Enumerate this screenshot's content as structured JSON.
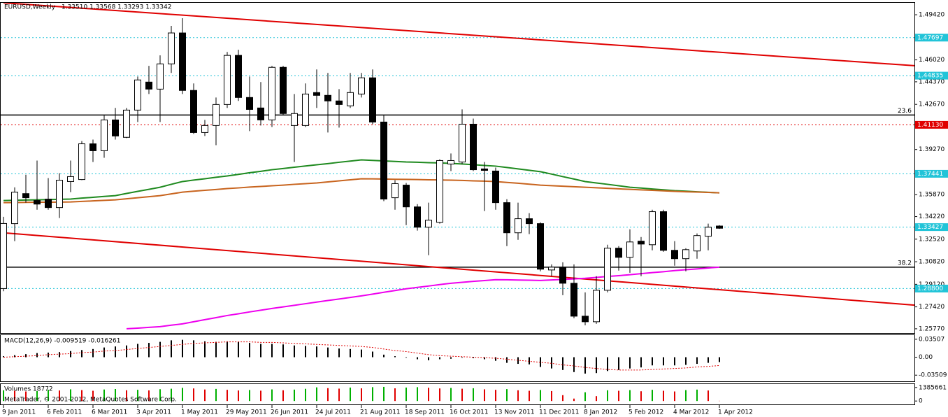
{
  "footer_text": "MetaTrader, © 2001-2012, MetaQuotes Software Corp.",
  "chart_data": [
    {
      "type": "candlestick",
      "title": "EURUSD,Weekly",
      "subtitle": "1.33510 1.33568 1.33293 1.33342",
      "categories": [
        "9 Jan 2011",
        null,
        null,
        null,
        "6 Feb 2011",
        null,
        null,
        null,
        "6 Mar 2011",
        null,
        null,
        null,
        "3 Apr 2011",
        null,
        null,
        null,
        "1 May 2011",
        null,
        null,
        null,
        "29 May 2011",
        null,
        null,
        null,
        "26 Jun 2011",
        null,
        null,
        null,
        "24 Jul 2011",
        null,
        null,
        null,
        "21 Aug 2011",
        null,
        null,
        null,
        "18 Sep 2011",
        null,
        null,
        null,
        "16 Oct 2011",
        null,
        null,
        null,
        "13 Nov 2011",
        null,
        null,
        null,
        "11 Dec 2011",
        null,
        null,
        null,
        "8 Jan 2012",
        null,
        null,
        null,
        "5 Feb 2012",
        null,
        null,
        null,
        "4 Mar 2012",
        null,
        null,
        null,
        "1 Apr 2012"
      ],
      "open": [
        1.288,
        1.3369,
        1.3595,
        1.3543,
        1.3553,
        1.349,
        1.3686,
        1.3701,
        1.397,
        1.3918,
        1.415,
        1.4019,
        1.4224,
        1.4435,
        1.4382,
        1.4572,
        1.4805,
        1.4372,
        1.4055,
        1.4108,
        1.4266,
        1.4636,
        1.4319,
        1.424,
        1.415,
        1.4546,
        1.4108,
        1.4108,
        1.4356,
        1.4335,
        1.4293,
        1.4256,
        1.4345,
        1.4467,
        1.4134,
        1.3564,
        1.3659,
        1.3495,
        1.3342,
        1.3379,
        1.3818,
        1.3833,
        1.4118,
        1.3781,
        1.3765,
        1.3527,
        1.33,
        1.3406,
        1.3369,
        1.302,
        1.3041,
        1.292,
        1.2672,
        1.263,
        1.2867,
        1.3184,
        1.3115,
        1.3237,
        1.321,
        1.3459,
        1.3168,
        1.3105,
        1.3163,
        1.3274,
        1.3351
      ],
      "high": [
        1.342,
        1.3642,
        1.3737,
        1.3844,
        1.3712,
        1.3749,
        1.3844,
        1.3991,
        1.4002,
        1.4187,
        1.424,
        1.424,
        1.4477,
        1.4557,
        1.4636,
        1.4858,
        1.4916,
        1.4425,
        1.415,
        1.4319,
        1.4662,
        1.4678,
        1.4477,
        1.4435,
        1.4557,
        1.4557,
        1.4345,
        1.4425,
        1.453,
        1.4504,
        1.4382,
        1.4504,
        1.4504,
        1.453,
        1.4187,
        1.3696,
        1.3675,
        1.3516,
        1.3527,
        1.3854,
        1.3897,
        1.4229,
        1.416,
        1.3833,
        1.3791,
        1.3553,
        1.3527,
        1.3448,
        1.3379,
        1.3062,
        1.3078,
        1.3062,
        1.2851,
        1.2973,
        1.321,
        1.32,
        1.3326,
        1.3268,
        1.3474,
        1.3474,
        1.3237,
        1.3184,
        1.3295,
        1.3369,
        1.33568
      ],
      "low": [
        1.286,
        1.3237,
        1.3527,
        1.3474,
        1.3474,
        1.3411,
        1.3606,
        1.3696,
        1.3833,
        1.3865,
        1.4002,
        1.4013,
        1.4134,
        1.4345,
        1.4134,
        1.4504,
        1.4345,
        1.4045,
        1.4029,
        1.396,
        1.424,
        1.4293,
        1.4066,
        1.4108,
        1.4097,
        1.4187,
        1.3833,
        1.4097,
        1.424,
        1.4055,
        1.4092,
        1.424,
        1.4319,
        1.4118,
        1.3538,
        1.3474,
        1.3358,
        1.3316,
        1.3131,
        1.3369,
        1.3765,
        1.3818,
        1.3765,
        1.3464,
        1.3474,
        1.32,
        1.3247,
        1.329,
        1.301,
        1.2973,
        1.283,
        1.2656,
        1.2603,
        1.2614,
        1.2851,
        1.3015,
        1.2999,
        1.2973,
        1.3168,
        1.3157,
        1.3052,
        1.301,
        1.3105,
        1.3168,
        1.33293
      ],
      "close": [
        1.337,
        1.3606,
        1.3564,
        1.3516,
        1.349,
        1.3696,
        1.3723,
        1.397,
        1.3918,
        1.415,
        1.4029,
        1.4224,
        1.4451,
        1.4382,
        1.4572,
        1.4805,
        1.4372,
        1.4055,
        1.4108,
        1.4266,
        1.4636,
        1.4319,
        1.4229,
        1.415,
        1.4546,
        1.4198,
        1.4198,
        1.4345,
        1.4335,
        1.4293,
        1.4266,
        1.4356,
        1.4467,
        1.4134,
        1.3554,
        1.367,
        1.3495,
        1.3342,
        1.3395,
        1.3844,
        1.3844,
        1.4118,
        1.3775,
        1.377,
        1.3527,
        1.33,
        1.3406,
        1.3369,
        1.3026,
        1.3041,
        1.292,
        1.2672,
        1.263,
        1.2867,
        1.3184,
        1.3115,
        1.3231,
        1.3215,
        1.3459,
        1.3168,
        1.3105,
        1.3173,
        1.3279,
        1.3342,
        1.33342
      ],
      "up_color": "#ffffff",
      "down_color": "#000000",
      "wick_color": "#000000",
      "series": [
        {
          "color": "#1f8a1f",
          "values": [
            1.3543,
            1.3545,
            1.3547,
            1.3548,
            1.355,
            1.3552,
            1.3554,
            1.3561,
            1.3567,
            1.3574,
            1.358,
            1.3596,
            1.3612,
            1.3627,
            1.3643,
            1.3665,
            1.3686,
            1.3697,
            1.3707,
            1.3718,
            1.3728,
            1.374,
            1.3752,
            1.3763,
            1.3775,
            1.3784,
            1.3794,
            1.3803,
            1.3812,
            1.3821,
            1.3831,
            1.384,
            1.3849,
            1.3845,
            1.3841,
            1.3837,
            1.3833,
            1.3831,
            1.3828,
            1.3826,
            1.3823,
            1.3818,
            1.3813,
            1.3807,
            1.3802,
            1.3792,
            1.3781,
            1.3771,
            1.376,
            1.3742,
            1.3723,
            1.3705,
            1.3686,
            1.3675,
            1.3665,
            1.3654,
            1.3643,
            1.3637,
            1.363,
            1.3624,
            1.3617,
            1.3613,
            1.3609,
            1.3605,
            1.3601
          ]
        },
        {
          "color": "#c8641e",
          "values": [
            1.3527,
            1.3528,
            1.3529,
            1.353,
            1.353,
            1.3531,
            1.3532,
            1.3536,
            1.354,
            1.3544,
            1.3548,
            1.3556,
            1.3564,
            1.3572,
            1.358,
            1.3593,
            1.3606,
            1.3613,
            1.362,
            1.3626,
            1.3633,
            1.3638,
            1.3644,
            1.3649,
            1.3654,
            1.3659,
            1.3665,
            1.367,
            1.3675,
            1.3683,
            1.3691,
            1.3699,
            1.3707,
            1.3706,
            1.3705,
            1.3703,
            1.3702,
            1.3701,
            1.3699,
            1.3698,
            1.3696,
            1.3694,
            1.3691,
            1.3689,
            1.3686,
            1.3679,
            1.3673,
            1.3666,
            1.3659,
            1.3655,
            1.3651,
            1.3647,
            1.3643,
            1.3639,
            1.3635,
            1.3631,
            1.3627,
            1.3623,
            1.362,
            1.3616,
            1.3612,
            1.3609,
            1.3607,
            1.3604,
            1.3601
          ]
        },
        {
          "color": "#ee00ee",
          "values": [
            null,
            null,
            null,
            null,
            null,
            null,
            null,
            null,
            null,
            null,
            null,
            1.2577,
            1.2582,
            1.2588,
            1.2593,
            1.2604,
            1.2614,
            1.263,
            1.2646,
            1.2661,
            1.2677,
            1.269,
            1.2704,
            1.2717,
            1.273,
            1.2742,
            1.2754,
            1.2766,
            1.2778,
            1.279,
            1.2801,
            1.2813,
            1.2825,
            1.2838,
            1.2852,
            1.2865,
            1.2878,
            1.2889,
            1.2899,
            1.291,
            1.292,
            1.2927,
            1.2934,
            1.294,
            1.2947,
            1.2946,
            1.2944,
            1.2943,
            1.2941,
            1.2945,
            1.2949,
            1.2953,
            1.2957,
            1.2964,
            1.2971,
            1.2977,
            1.2984,
            1.2992,
            1.3,
            1.3007,
            1.3015,
            1.3022,
            1.3028,
            1.3035,
            1.3041
          ]
        }
      ],
      "trendlines": [
        {
          "color": "#e00000",
          "points": [
            [
              0,
              1.5032
            ],
            [
              84.4,
              1.4541
            ]
          ]
        },
        {
          "color": "#e00000",
          "points": [
            [
              0,
              1.33
            ],
            [
              84.4,
              1.2735
            ]
          ]
        }
      ],
      "levels": [
        {
          "value": 1.47697,
          "color": "#22c4d8"
        },
        {
          "value": 1.44835,
          "color": "#22c4d8"
        },
        {
          "value": 1.4113,
          "label": "1.41130",
          "color": "#e00000"
        },
        {
          "value": 1.37441,
          "color": "#22c4d8"
        },
        {
          "value": 1.33427,
          "color": "#22c4d8"
        },
        {
          "value": 1.288,
          "label": "1.28800",
          "color": "#22c4d8"
        }
      ],
      "fib_levels": [
        {
          "value": 1.4187,
          "label": "23.6",
          "color": "#000000"
        },
        {
          "value": 1.3041,
          "label": "38.2",
          "color": "#000000"
        }
      ],
      "ylim": [
        1.2545,
        1.5032
      ],
      "yticks": [
        {
          "value": 1.4942,
          "label": "1.49420"
        },
        {
          "value": 1.4602,
          "label": "1.46020"
        },
        {
          "value": 1.4437,
          "label": "1.44370"
        },
        {
          "value": 1.4267,
          "label": "1.42670"
        },
        {
          "value": 1.3927,
          "label": "1.39270"
        },
        {
          "value": 1.3587,
          "label": "1.35870"
        },
        {
          "value": 1.3422,
          "label": "1.34220"
        },
        {
          "value": 1.3252,
          "label": "1.32520"
        },
        {
          "value": 1.3082,
          "label": "1.30820"
        },
        {
          "value": 1.2912,
          "label": "1.29120"
        },
        {
          "value": 1.2742,
          "label": "1.27420"
        },
        {
          "value": 1.2577,
          "label": "1.25770"
        }
      ]
    },
    {
      "type": "macd",
      "title": "MACD(12,26,9) -0.009519 -0.016261",
      "series": [
        {
          "kind": "histogram",
          "color": "#000000",
          "values": [
            0.002,
            0.004,
            0.006,
            0.008,
            0.009,
            0.01,
            0.012,
            0.014,
            0.016,
            0.019,
            0.021,
            0.023,
            0.026,
            0.028,
            0.03,
            0.033,
            0.034,
            0.033,
            0.031,
            0.03,
            0.031,
            0.03,
            0.028,
            0.026,
            0.026,
            0.025,
            0.023,
            0.022,
            0.021,
            0.019,
            0.017,
            0.016,
            0.015,
            0.011,
            0.005,
            0.002,
            -0.001,
            -0.004,
            -0.006,
            -0.004,
            -0.003,
            -0.001,
            -0.002,
            -0.004,
            -0.007,
            -0.011,
            -0.013,
            -0.014,
            -0.019,
            -0.022,
            -0.025,
            -0.029,
            -0.032,
            -0.031,
            -0.027,
            -0.025,
            -0.022,
            -0.02,
            -0.016,
            -0.016,
            -0.016,
            -0.015,
            -0.013,
            -0.011,
            -0.009519
          ]
        },
        {
          "kind": "line",
          "color": "#e00000",
          "values": [
            0.0,
            0.001,
            0.002,
            0.003,
            0.005,
            0.006,
            0.007,
            0.009,
            0.01,
            0.012,
            0.013,
            0.015,
            0.017,
            0.019,
            0.021,
            0.023,
            0.025,
            0.027,
            0.028,
            0.029,
            0.03,
            0.03,
            0.03,
            0.029,
            0.029,
            0.028,
            0.027,
            0.026,
            0.025,
            0.024,
            0.023,
            0.022,
            0.021,
            0.019,
            0.016,
            0.013,
            0.011,
            0.008,
            0.005,
            0.003,
            0.002,
            0.001,
            0.0,
            -0.001,
            -0.002,
            -0.004,
            -0.006,
            -0.008,
            -0.01,
            -0.012,
            -0.015,
            -0.017,
            -0.02,
            -0.022,
            -0.024,
            -0.025,
            -0.025,
            -0.025,
            -0.024,
            -0.023,
            -0.022,
            -0.021,
            -0.019,
            -0.018,
            -0.016261
          ]
        }
      ],
      "ylim": [
        -0.0471,
        0.0431
      ],
      "yticks": [
        0.03507,
        {
          "value": 0,
          "label": "0.00"
        },
        -0.03509
      ]
    },
    {
      "type": "bar",
      "title": "Volumes 18772",
      "values": [
        1100000,
        1050000,
        980000,
        1020000,
        1150000,
        1080000,
        1200000,
        1120000,
        1050000,
        1180000,
        1230000,
        1100000,
        1150000,
        1090000,
        1210000,
        1260000,
        1350000,
        1290000,
        1180000,
        1240000,
        1150000,
        1080000,
        1130000,
        1060000,
        1190000,
        1100000,
        1170000,
        1250000,
        1400000,
        1320000,
        1270000,
        1380000,
        1300000,
        1420000,
        1450000,
        1300000,
        1380000,
        1420000,
        1360000,
        1290000,
        1340000,
        1260000,
        1310000,
        1200000,
        1150000,
        1220000,
        1100000,
        1050000,
        1130000,
        1020000,
        600000,
        250000,
        900000,
        500000,
        1100000,
        1050000,
        1120000,
        1000000,
        1150000,
        1050000,
        980000,
        1120000,
        1170000,
        1080000,
        18772
      ],
      "up_color": "#00b000",
      "down_color": "#e00000",
      "ylim": [
        -346415,
        1732076
      ],
      "yticks": [
        1385661,
        0
      ]
    }
  ]
}
